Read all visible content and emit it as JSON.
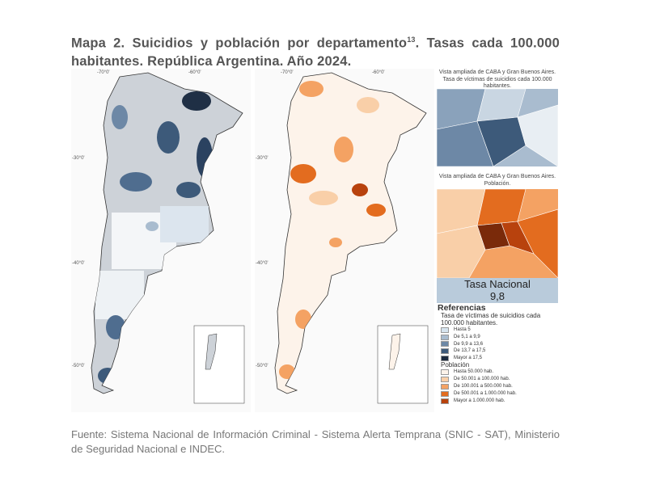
{
  "header": {
    "title_part1": "Mapa 2. Suicidios y población por departamento",
    "footnote_ref": "13",
    "title_part2": ". Tasas cada 100.000 habitantes. República Argentina. Año 2024."
  },
  "maps": {
    "left": {
      "lon_labels": [
        "-70°0'",
        "-60°0'"
      ],
      "lat_labels": [
        "-30°0'",
        "-40°0'",
        "-50°0'"
      ]
    },
    "right": {
      "lon_labels": [
        "-70°0'",
        "-60°0'"
      ],
      "lat_labels": [
        "-30°0'",
        "-40°0'",
        "-50°0'"
      ]
    }
  },
  "zoom_panels": [
    {
      "caption": "Vista ampliada de CABA y Gran Buenos Aires. Tasa de víctimas de suicidios cada 100.000 habitantes."
    },
    {
      "caption": "Vista ampliada de CABA y Gran Buenos Aires. Población."
    }
  ],
  "national_rate": {
    "label": "Tasa Nacional",
    "value": "9,8"
  },
  "legend": {
    "title": "Referencias",
    "rate": {
      "title": "Tasa de víctimas de suicidios cada 100.000 habitantes.",
      "items": [
        "Hasta 5",
        "De 5,1 a 9,9",
        "De 9,9 a 13,6",
        "De 13,7 a 17,5",
        "Mayor a 17,5"
      ]
    },
    "population": {
      "title": "Población",
      "items": [
        "Hasta 50.000 hab.",
        "De 50.001 a 100.000 hab.",
        "De 100.001 a 500.000 hab.",
        "De 500.001 a 1.000.000 hab.",
        "Mayor a 1.000.000 hab."
      ]
    }
  },
  "source": "Fuente: Sistema Nacional de Información Criminal - Sistema Alerta Temprana (SNIC - SAT), Ministerio de Seguridad Nacional e INDEC."
}
